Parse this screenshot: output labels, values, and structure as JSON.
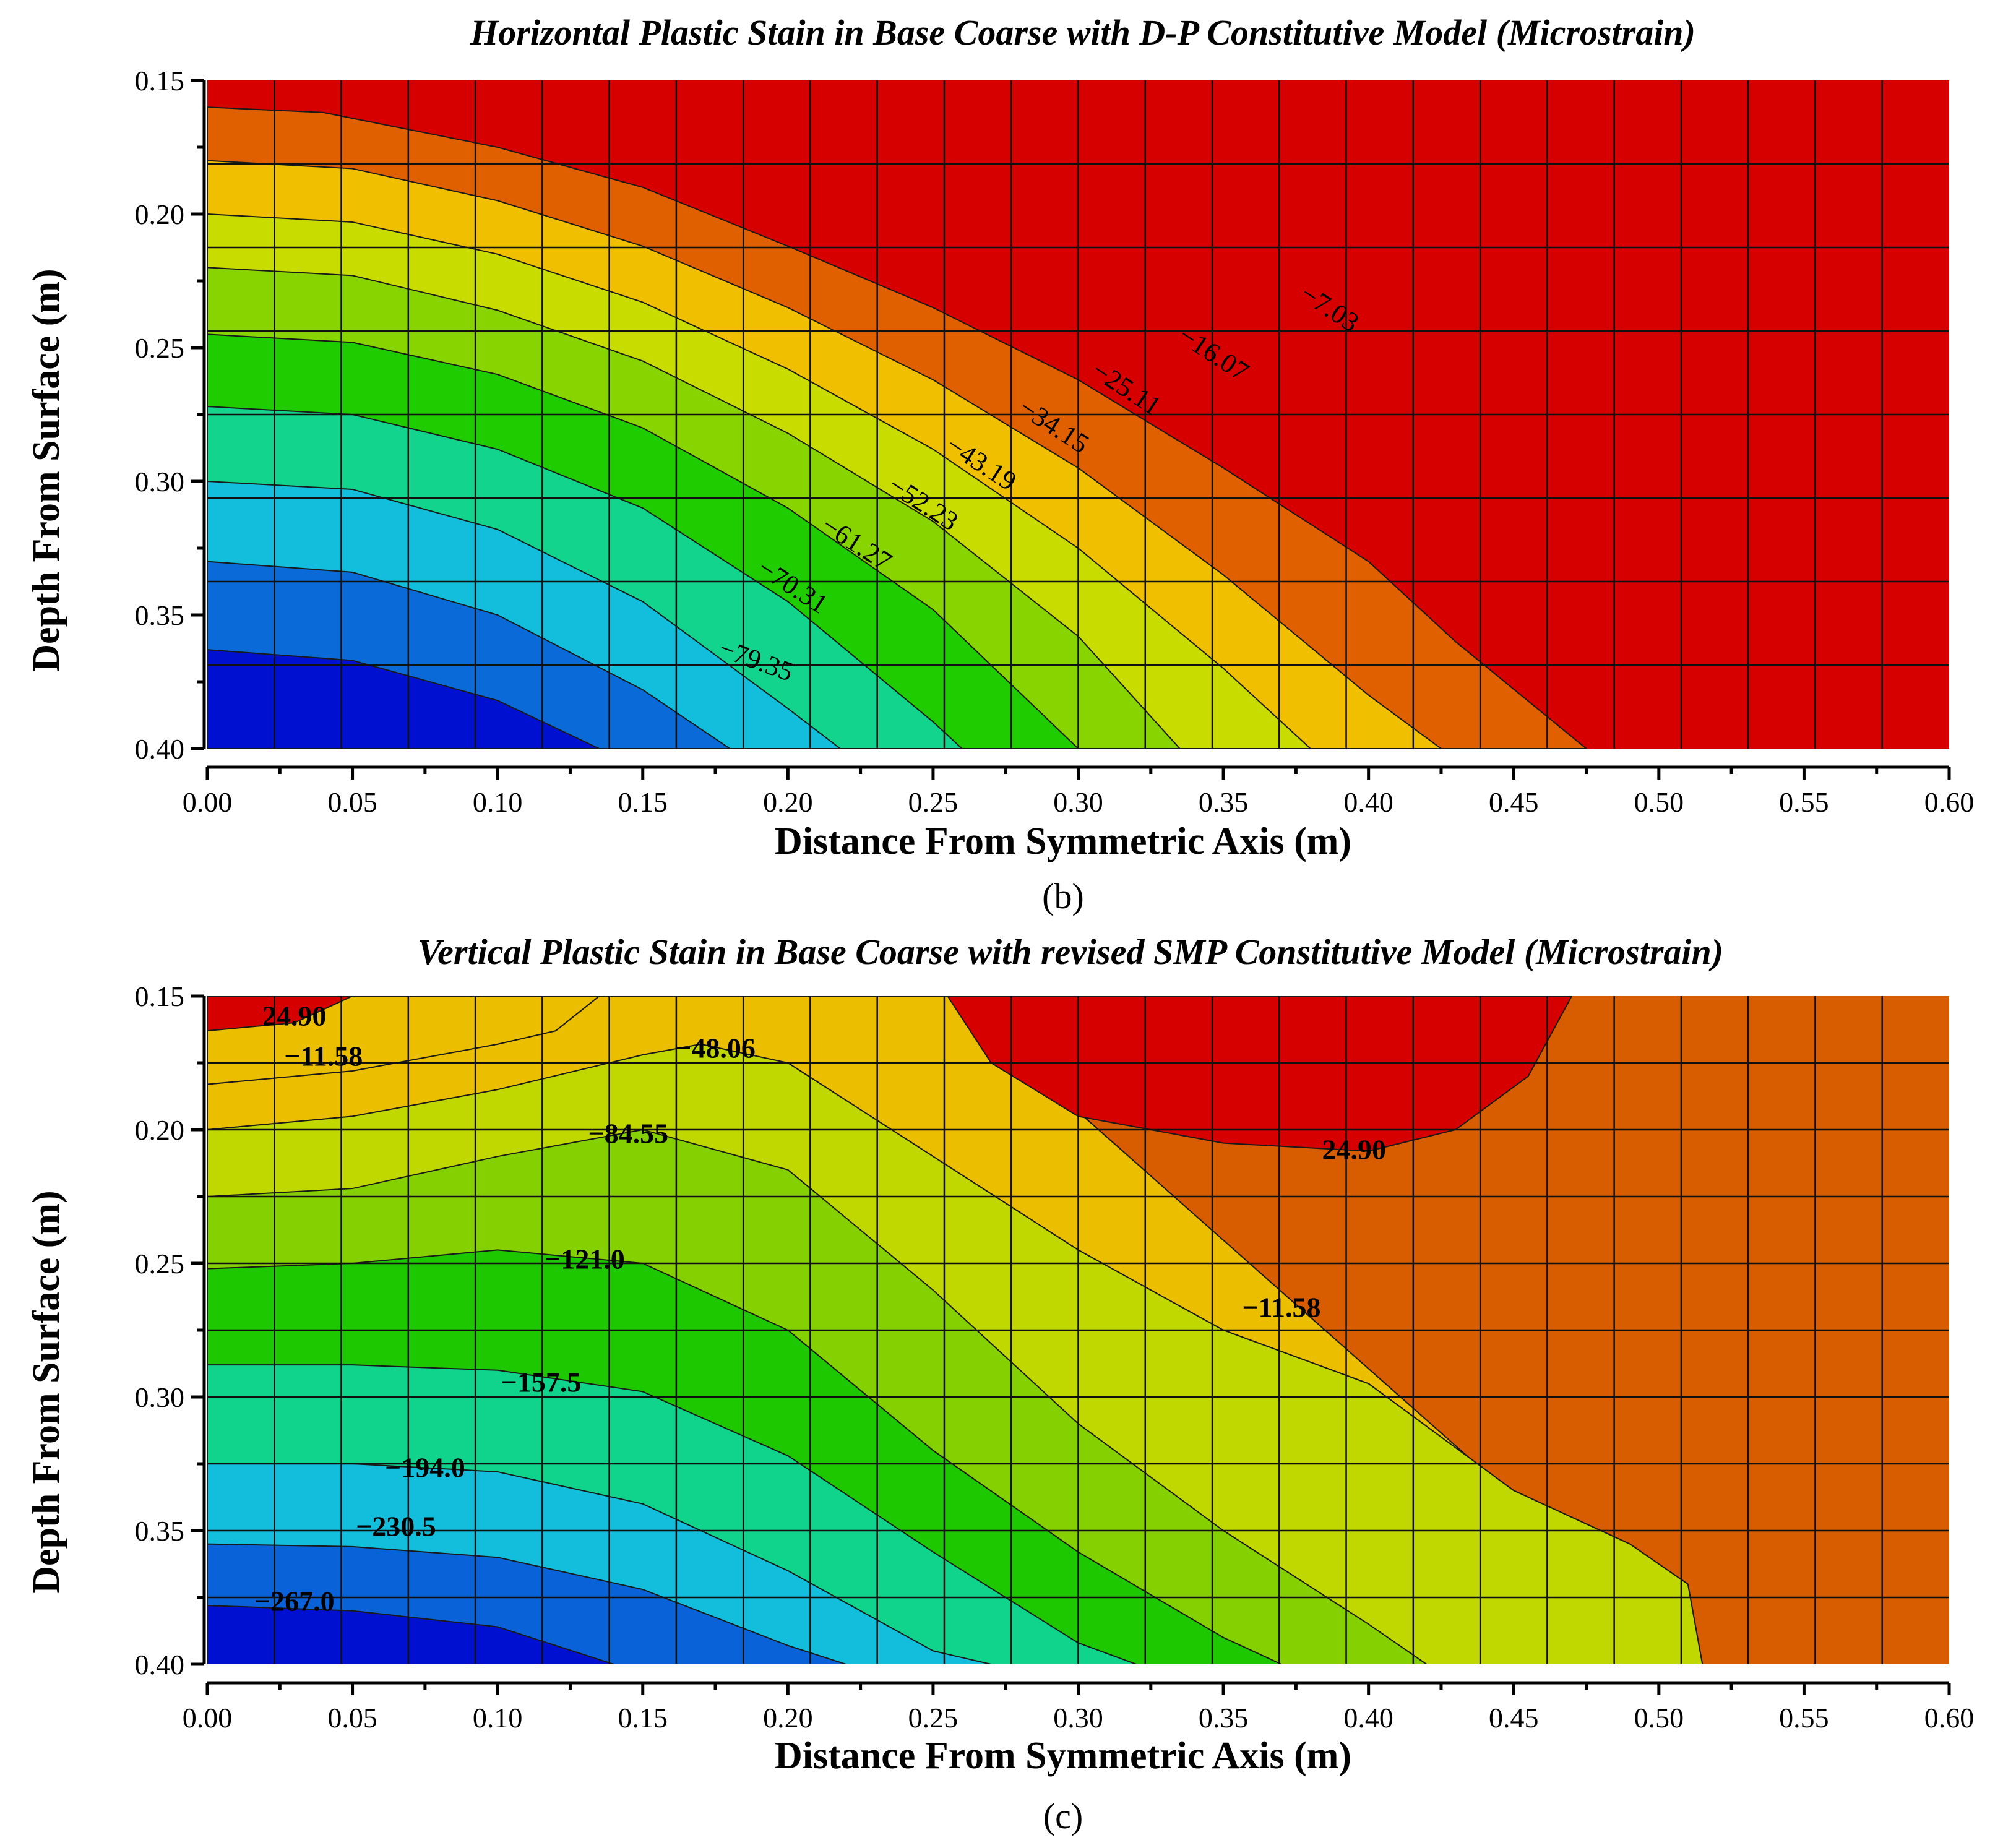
{
  "chart_data": [
    {
      "type": "contour",
      "title": "Horizontal Plastic Stain in Base Coarse with D-P Constitutive Model (Microstrain)",
      "xlabel": "Distance From Symmetric Axis (m)",
      "ylabel": "Depth From Surface (m)",
      "xlim": [
        0.0,
        0.6
      ],
      "ylim": [
        0.15,
        0.4
      ],
      "y_inverted": true,
      "x_ticks": [
        "0.00",
        "0.05",
        "0.10",
        "0.15",
        "0.20",
        "0.25",
        "0.30",
        "0.35",
        "0.40",
        "0.45",
        "0.50",
        "0.55",
        "0.60"
      ],
      "y_ticks": [
        "0.15",
        "0.20",
        "0.25",
        "0.30",
        "0.35",
        "0.40"
      ],
      "caption": "(b)",
      "mesh_grid": true,
      "contour_levels": [
        "−7.03",
        "−16.07",
        "−25.11",
        "−34.15",
        "−43.19",
        "−52.23",
        "−61.27",
        "−70.31",
        "−79.35"
      ],
      "band_colors": [
        "#d60000",
        "#e06000",
        "#f0c000",
        "#c8dc00",
        "#88d400",
        "#1ecc00",
        "#12d48c",
        "#12bedc",
        "#0a6ad8",
        "#0010d0"
      ],
      "contour_boundaries": [
        [
          [
            0.0,
            0.16
          ],
          [
            0.04,
            0.162
          ],
          [
            0.1,
            0.175
          ],
          [
            0.15,
            0.19
          ],
          [
            0.2,
            0.212
          ],
          [
            0.25,
            0.235
          ],
          [
            0.3,
            0.262
          ],
          [
            0.35,
            0.295
          ],
          [
            0.4,
            0.33
          ],
          [
            0.43,
            0.36
          ],
          [
            0.475,
            0.4
          ]
        ],
        [
          [
            0.0,
            0.18
          ],
          [
            0.05,
            0.183
          ],
          [
            0.1,
            0.195
          ],
          [
            0.15,
            0.212
          ],
          [
            0.2,
            0.235
          ],
          [
            0.25,
            0.262
          ],
          [
            0.3,
            0.295
          ],
          [
            0.35,
            0.335
          ],
          [
            0.4,
            0.38
          ],
          [
            0.425,
            0.4
          ]
        ],
        [
          [
            0.0,
            0.2
          ],
          [
            0.05,
            0.203
          ],
          [
            0.1,
            0.215
          ],
          [
            0.15,
            0.233
          ],
          [
            0.2,
            0.258
          ],
          [
            0.25,
            0.288
          ],
          [
            0.3,
            0.325
          ],
          [
            0.35,
            0.37
          ],
          [
            0.38,
            0.4
          ]
        ],
        [
          [
            0.0,
            0.22
          ],
          [
            0.05,
            0.223
          ],
          [
            0.1,
            0.236
          ],
          [
            0.15,
            0.255
          ],
          [
            0.2,
            0.282
          ],
          [
            0.25,
            0.315
          ],
          [
            0.3,
            0.358
          ],
          [
            0.335,
            0.4
          ]
        ],
        [
          [
            0.0,
            0.245
          ],
          [
            0.05,
            0.248
          ],
          [
            0.1,
            0.26
          ],
          [
            0.15,
            0.28
          ],
          [
            0.2,
            0.31
          ],
          [
            0.25,
            0.348
          ],
          [
            0.3,
            0.4
          ]
        ],
        [
          [
            0.0,
            0.272
          ],
          [
            0.05,
            0.275
          ],
          [
            0.1,
            0.288
          ],
          [
            0.15,
            0.31
          ],
          [
            0.2,
            0.345
          ],
          [
            0.25,
            0.39
          ],
          [
            0.26,
            0.4
          ]
        ],
        [
          [
            0.0,
            0.3
          ],
          [
            0.05,
            0.303
          ],
          [
            0.1,
            0.318
          ],
          [
            0.15,
            0.345
          ],
          [
            0.2,
            0.385
          ],
          [
            0.218,
            0.4
          ]
        ],
        [
          [
            0.0,
            0.33
          ],
          [
            0.05,
            0.334
          ],
          [
            0.1,
            0.35
          ],
          [
            0.15,
            0.378
          ],
          [
            0.18,
            0.4
          ]
        ],
        [
          [
            0.0,
            0.363
          ],
          [
            0.05,
            0.367
          ],
          [
            0.1,
            0.382
          ],
          [
            0.135,
            0.4
          ]
        ]
      ]
    },
    {
      "type": "contour",
      "title": "Vertical Plastic Stain in Base Coarse with revised SMP Constitutive Model (Microstrain)",
      "xlabel": "Distance From Symmetric Axis (m)",
      "ylabel": "Depth From Surface (m)",
      "xlim": [
        0.0,
        0.6
      ],
      "ylim": [
        0.15,
        0.4
      ],
      "y_inverted": true,
      "x_ticks": [
        "0.00",
        "0.05",
        "0.10",
        "0.15",
        "0.20",
        "0.25",
        "0.30",
        "0.35",
        "0.40",
        "0.45",
        "0.50",
        "0.55",
        "0.60"
      ],
      "y_ticks": [
        "0.15",
        "0.20",
        "0.25",
        "0.30",
        "0.35",
        "0.40"
      ],
      "caption": "(c)",
      "mesh_grid": true,
      "contour_levels": [
        "24.90",
        "−11.58",
        "−48.06",
        "−84.55",
        "−121.0",
        "−157.5",
        "−194.0",
        "−230.5",
        "−267.0"
      ],
      "band_colors": [
        "#d60000",
        "#d85c00",
        "#ecbe00",
        "#c0d800",
        "#84d000",
        "#1ec800",
        "#10d48c",
        "#12bedc",
        "#0a62d8",
        "#0010d0"
      ],
      "contour_boundaries": [
        [
          [
            0.0,
            0.163
          ],
          [
            0.03,
            0.16
          ],
          [
            0.05,
            0.15
          ]
        ],
        [
          [
            0.0,
            0.183
          ],
          [
            0.05,
            0.178
          ],
          [
            0.1,
            0.168
          ],
          [
            0.12,
            0.163
          ],
          [
            0.135,
            0.15
          ]
        ],
        [
          [
            0.0,
            0.2
          ],
          [
            0.05,
            0.195
          ],
          [
            0.1,
            0.185
          ],
          [
            0.15,
            0.172
          ],
          [
            0.17,
            0.168
          ],
          [
            0.2,
            0.175
          ],
          [
            0.25,
            0.21
          ],
          [
            0.3,
            0.245
          ],
          [
            0.35,
            0.275
          ],
          [
            0.4,
            0.295
          ],
          [
            0.45,
            0.335
          ],
          [
            0.49,
            0.355
          ],
          [
            0.51,
            0.37
          ],
          [
            0.515,
            0.4
          ]
        ],
        [
          [
            0.0,
            0.225
          ],
          [
            0.05,
            0.222
          ],
          [
            0.1,
            0.21
          ],
          [
            0.15,
            0.2
          ],
          [
            0.2,
            0.215
          ],
          [
            0.25,
            0.26
          ],
          [
            0.3,
            0.31
          ],
          [
            0.35,
            0.35
          ],
          [
            0.4,
            0.385
          ],
          [
            0.42,
            0.4
          ]
        ],
        [
          [
            0.0,
            0.252
          ],
          [
            0.05,
            0.25
          ],
          [
            0.1,
            0.245
          ],
          [
            0.15,
            0.25
          ],
          [
            0.2,
            0.275
          ],
          [
            0.25,
            0.32
          ],
          [
            0.3,
            0.358
          ],
          [
            0.35,
            0.39
          ],
          [
            0.37,
            0.4
          ]
        ],
        [
          [
            0.0,
            0.288
          ],
          [
            0.05,
            0.288
          ],
          [
            0.1,
            0.29
          ],
          [
            0.15,
            0.298
          ],
          [
            0.2,
            0.322
          ],
          [
            0.25,
            0.358
          ],
          [
            0.3,
            0.392
          ],
          [
            0.32,
            0.4
          ]
        ],
        [
          [
            0.0,
            0.325
          ],
          [
            0.05,
            0.325
          ],
          [
            0.1,
            0.328
          ],
          [
            0.15,
            0.34
          ],
          [
            0.2,
            0.365
          ],
          [
            0.25,
            0.395
          ],
          [
            0.27,
            0.4
          ]
        ],
        [
          [
            0.0,
            0.355
          ],
          [
            0.05,
            0.356
          ],
          [
            0.1,
            0.36
          ],
          [
            0.15,
            0.372
          ],
          [
            0.2,
            0.393
          ],
          [
            0.22,
            0.4
          ]
        ],
        [
          [
            0.0,
            0.378
          ],
          [
            0.05,
            0.38
          ],
          [
            0.1,
            0.386
          ],
          [
            0.14,
            0.4
          ]
        ]
      ],
      "top_right_cap": [
        [
          0.255,
          0.15
        ],
        [
          0.27,
          0.175
        ],
        [
          0.3,
          0.195
        ],
        [
          0.35,
          0.205
        ],
        [
          0.4,
          0.208
        ],
        [
          0.43,
          0.2
        ],
        [
          0.455,
          0.18
        ],
        [
          0.465,
          0.16
        ],
        [
          0.47,
          0.15
        ]
      ]
    }
  ]
}
